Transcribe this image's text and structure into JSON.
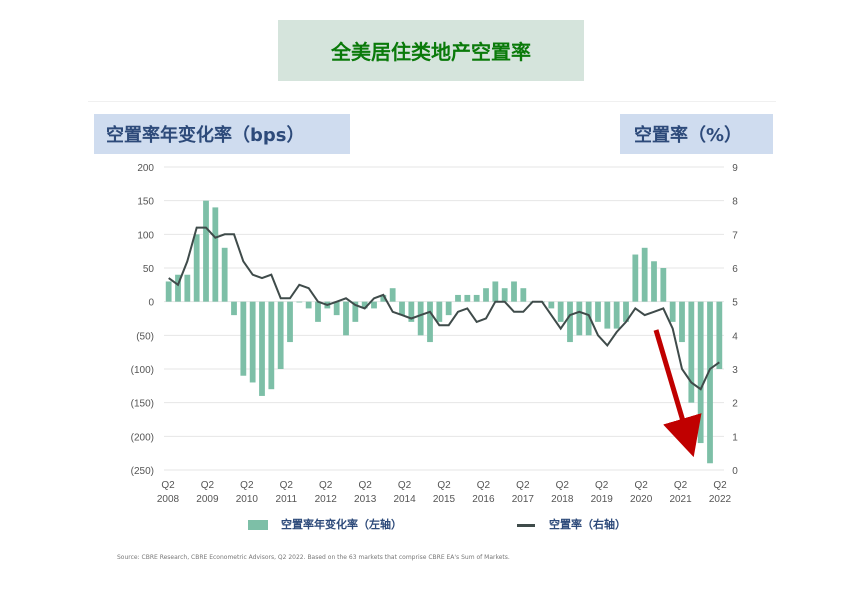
{
  "page_title": "全美居住类地产空置率",
  "left_axis_title": "空置率年变化率（bps）",
  "right_axis_title": "空置率（%）",
  "legend": {
    "bar_label": "空置率年变化率（左轴）",
    "line_label": "空置率（右轴）"
  },
  "source": "Source: CBRE Research, CBRE Econometric Advisors, Q2 2022. Based on the 63 markets that comprise CBRE EA's Sum of Markets.",
  "colors": {
    "bars": "#7dbfa7",
    "line": "#3f4b4a",
    "arrow": "#c00000",
    "title_text": "#0a7a0a",
    "axis_title_bg": "#cfdcef",
    "axis_title_text": "#2d4a7a"
  },
  "chart_data": {
    "type": "bar+line",
    "x_range": [
      "2008Q2",
      "2022Q2"
    ],
    "y_left": {
      "ylim": [
        -250,
        200
      ],
      "ticks": [
        "200",
        "150",
        "100",
        "50",
        "0",
        "(50)",
        "(100)",
        "(150)",
        "(200)",
        "(250)"
      ]
    },
    "y_right": {
      "ylim": [
        0,
        9
      ],
      "ticks": [
        "9",
        "8",
        "7",
        "6",
        "5",
        "4",
        "3",
        "2",
        "1",
        "0"
      ]
    },
    "x_ticks": [
      {
        "q": "Q2",
        "y": "2008"
      },
      {
        "q": "Q2",
        "y": "2009"
      },
      {
        "q": "Q2",
        "y": "2010"
      },
      {
        "q": "Q2",
        "y": "2011"
      },
      {
        "q": "Q2",
        "y": "2012"
      },
      {
        "q": "Q2",
        "y": "2013"
      },
      {
        "q": "Q2",
        "y": "2014"
      },
      {
        "q": "Q2",
        "y": "2015"
      },
      {
        "q": "Q2",
        "y": "2016"
      },
      {
        "q": "Q2",
        "y": "2017"
      },
      {
        "q": "Q2",
        "y": "2018"
      },
      {
        "q": "Q2",
        "y": "2019"
      },
      {
        "q": "Q2",
        "y": "2020"
      },
      {
        "q": "Q2",
        "y": "2021"
      },
      {
        "q": "Q2",
        "y": "2022"
      }
    ],
    "series": [
      {
        "name": "空置率年变化率（左轴）",
        "type": "bar",
        "axis": "left",
        "values": [
          30,
          40,
          40,
          100,
          150,
          140,
          80,
          -20,
          -110,
          -120,
          -140,
          -130,
          -100,
          -60,
          0,
          -10,
          -30,
          -10,
          -20,
          -50,
          -30,
          -10,
          -10,
          10,
          20,
          -20,
          -30,
          -50,
          -60,
          -30,
          -20,
          10,
          10,
          10,
          20,
          30,
          20,
          30,
          20,
          0,
          0,
          -10,
          -30,
          -60,
          -50,
          -50,
          -30,
          -40,
          -40,
          -30,
          70,
          80,
          60,
          50,
          -30,
          -60,
          -150,
          -210,
          -240,
          -100
        ]
      },
      {
        "name": "空置率（右轴）",
        "type": "line",
        "axis": "right",
        "values": [
          5.7,
          5.5,
          6.2,
          7.2,
          7.2,
          6.9,
          7.0,
          7.0,
          6.2,
          5.8,
          5.7,
          5.8,
          5.1,
          5.1,
          5.5,
          5.4,
          5.0,
          4.9,
          5.0,
          5.1,
          4.9,
          4.8,
          5.1,
          5.2,
          4.7,
          4.6,
          4.5,
          4.6,
          4.7,
          4.3,
          4.3,
          4.7,
          4.8,
          4.4,
          4.5,
          5.0,
          5.0,
          4.7,
          4.7,
          5.0,
          5.0,
          4.6,
          4.2,
          4.6,
          4.7,
          4.6,
          4.0,
          3.7,
          4.1,
          4.4,
          4.8,
          4.6,
          4.7,
          4.8,
          4.2,
          3.0,
          2.6,
          2.4,
          3.0,
          3.2
        ]
      }
    ],
    "annotation": "downward red arrow toward 2022"
  }
}
